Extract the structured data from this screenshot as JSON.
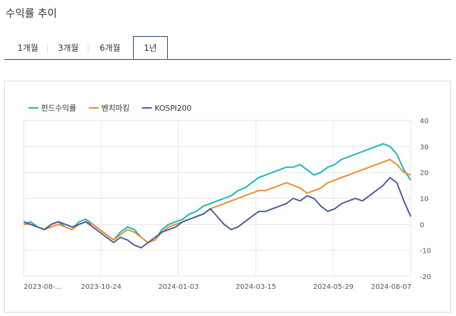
{
  "page": {
    "title": "수익률 추이"
  },
  "tabs": [
    {
      "label": "1개월",
      "active": false
    },
    {
      "label": "3개월",
      "active": false
    },
    {
      "label": "6개월",
      "active": false
    },
    {
      "label": "1년",
      "active": true
    }
  ],
  "chart_data": {
    "type": "line",
    "x_ticks": [
      "2023-08-...",
      "2023-10-24",
      "2024-01-03",
      "2024-03-15",
      "2024-05-29",
      "2024-08-07"
    ],
    "ylim": [
      -20,
      40
    ],
    "y_ticks": [
      40,
      30,
      20,
      10,
      0,
      -10,
      -20
    ],
    "grid": true,
    "legend_position": "top-left",
    "series": [
      {
        "name": "펀드수익률",
        "color": "#18b4b7",
        "values": [
          0,
          1,
          -1,
          -2,
          0,
          1,
          -1,
          -2,
          1,
          2,
          0,
          -2,
          -4,
          -6,
          -3,
          -1,
          -2,
          -5,
          -7,
          -6,
          -2,
          0,
          1,
          2,
          4,
          5,
          7,
          8,
          9,
          10,
          11,
          13,
          14,
          16,
          18,
          19,
          20,
          21,
          22,
          22,
          23,
          21,
          19,
          20,
          22,
          23,
          25,
          26,
          27,
          28,
          29,
          30,
          31,
          30,
          27,
          21,
          17
        ]
      },
      {
        "name": "벤치마킹",
        "color": "#f0892c",
        "values": [
          0,
          0,
          -1,
          -2,
          -1,
          0,
          -1,
          -2,
          0,
          1,
          0,
          -2,
          -4,
          -6,
          -4,
          -2,
          -3,
          -5,
          -7,
          -6,
          -3,
          -1,
          0,
          1,
          2,
          3,
          4,
          6,
          7,
          8,
          9,
          10,
          11,
          12,
          13,
          13,
          14,
          15,
          16,
          15,
          14,
          12,
          13,
          14,
          16,
          17,
          18,
          19,
          20,
          21,
          22,
          23,
          24,
          25,
          23,
          20,
          19
        ]
      },
      {
        "name": "KOSPI200",
        "color": "#4b5a9e",
        "values": [
          1,
          0,
          -1,
          -2,
          0,
          1,
          0,
          -1,
          0,
          1,
          -1,
          -3,
          -5,
          -7,
          -5,
          -6,
          -8,
          -9,
          -7,
          -5,
          -3,
          -2,
          -1,
          1,
          2,
          3,
          4,
          6,
          3,
          0,
          -2,
          -1,
          1,
          3,
          5,
          5,
          6,
          7,
          8,
          10,
          9,
          11,
          10,
          7,
          5,
          6,
          8,
          9,
          10,
          9,
          11,
          13,
          15,
          18,
          16,
          9,
          3
        ]
      }
    ]
  }
}
